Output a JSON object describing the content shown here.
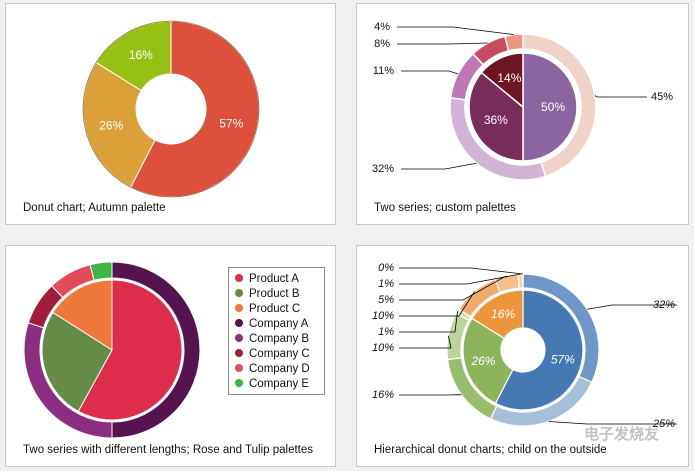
{
  "chart_data": [
    {
      "type": "pie",
      "caption": "Donut chart; Autumn palette",
      "series": [
        {
          "values": [
            57,
            26,
            16
          ],
          "labels": [
            "57%",
            "26%",
            "16%"
          ],
          "colors": [
            "#dc503c",
            "#dca038",
            "#96c014"
          ]
        }
      ]
    },
    {
      "type": "pie",
      "caption": "Two series; custom palettes",
      "series": [
        {
          "values": [
            50,
            36,
            14
          ],
          "labels": [
            "50%",
            "36%",
            "14%"
          ],
          "colors": [
            "#8c64a0",
            "#782d5a",
            "#6e1423"
          ]
        },
        {
          "values": [
            45,
            32,
            11,
            8,
            4
          ],
          "labels": [
            "45%",
            "32%",
            "11%",
            "8%",
            "4%"
          ],
          "colors": [
            "#f0d2c8",
            "#d2b4d7",
            "#be78b4",
            "#c84b5f",
            "#eb9682"
          ]
        }
      ]
    },
    {
      "type": "pie",
      "caption": "Two series with different lengths; Rose and Tulip palettes",
      "legend": [
        "Product A",
        "Product B",
        "Product C",
        "Company A",
        "Company B",
        "Company C",
        "Company D",
        "Company E"
      ],
      "series": [
        {
          "values": [
            58,
            26,
            16
          ],
          "colors": [
            "#dc2d4b",
            "#648c46",
            "#f0783c"
          ]
        },
        {
          "values": [
            50,
            30,
            8,
            8,
            4
          ],
          "colors": [
            "#551450",
            "#8c2d82",
            "#a01e3c",
            "#e14b5a",
            "#3cb446"
          ]
        }
      ]
    },
    {
      "type": "pie",
      "caption": "Hierarchical donut charts; child on the outside",
      "series": [
        {
          "values": [
            57,
            26,
            16
          ],
          "labels": [
            "57%",
            "26%",
            "16%"
          ],
          "colors": [
            "#4678b4",
            "#8cb45a",
            "#eb963c"
          ]
        },
        {
          "values": [
            32,
            25,
            16,
            10,
            1,
            10,
            5,
            1,
            0
          ],
          "labels": [
            "32%",
            "25%",
            "16%",
            "10%",
            "1%",
            "10%",
            "5%",
            "1%",
            "0%"
          ],
          "colors": [
            "#6e96c8",
            "#a5bedc",
            "#96be6e",
            "#bed29b",
            "#d2e1b9",
            "#f0aa6e",
            "#f5be8c",
            "#fad2aa",
            "#fde6cd"
          ]
        }
      ]
    }
  ],
  "watermark": "电子发烧友"
}
